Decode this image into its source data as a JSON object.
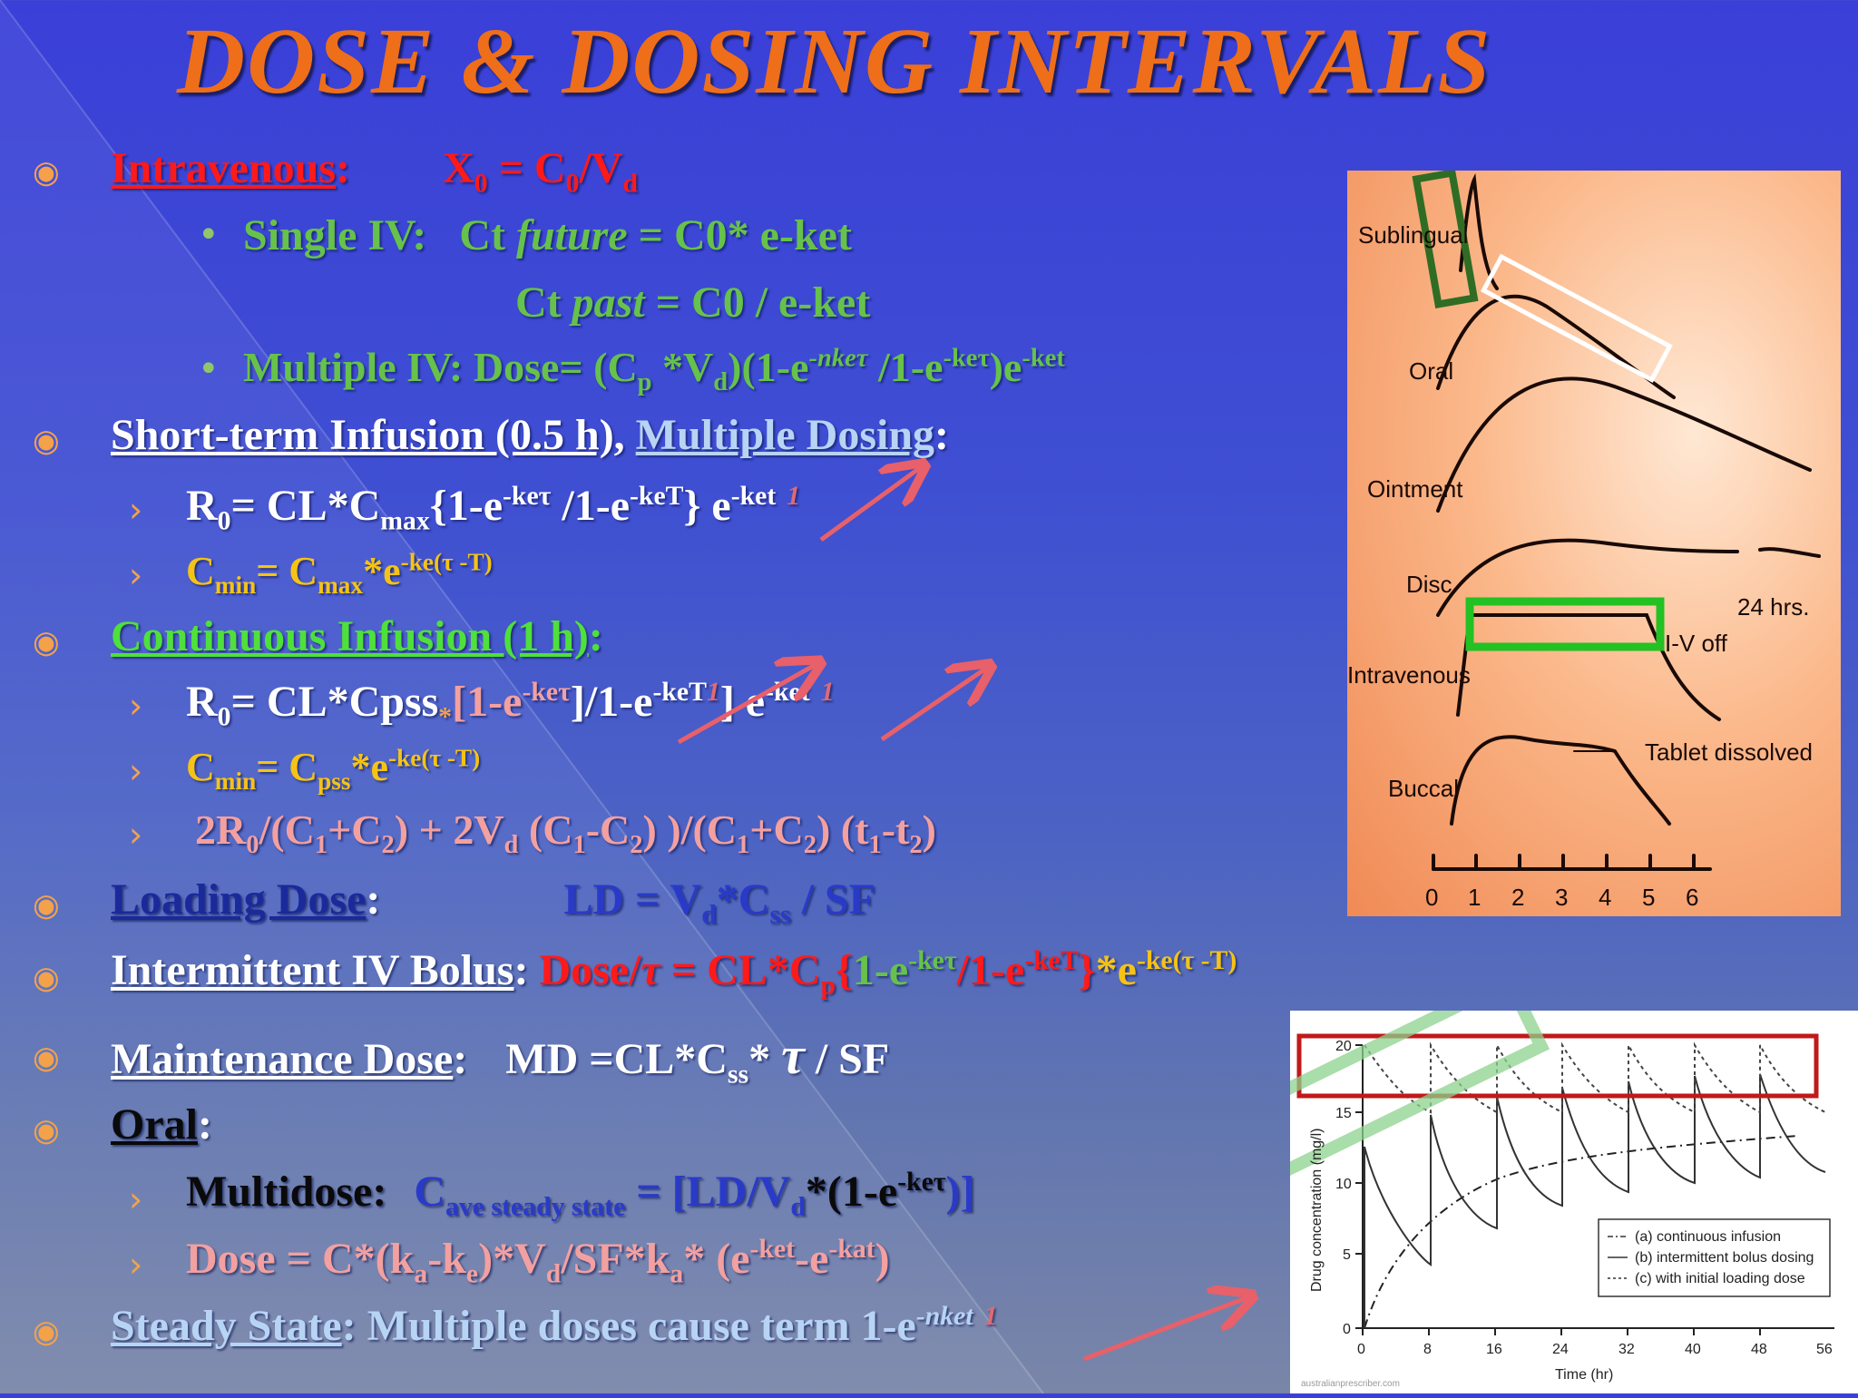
{
  "title": "DOSE & DOSING INTERVALS",
  "l1": {
    "label": "Intravenous",
    "colon": ":",
    "formula_x": "X",
    "formula_xs": "0",
    "formula_eq": " = C",
    "formula_cs": "0",
    "formula_v": "/V",
    "formula_vs": "d"
  },
  "l2": {
    "label": "Single IV:",
    "a": "Ct ",
    "b": "future",
    "c": " =  C0* e-ket"
  },
  "l3": {
    "a": "Ct ",
    "b": "past",
    "c": "   =  C0 / e-ket"
  },
  "l4": {
    "a": "Multiple IV: Dose= (C",
    "p": "p",
    "b": " *V",
    "d": "d",
    "c": ")(1-e",
    "s1": "-nkeτ",
    "e": " /1-e",
    "s2": "-keτ",
    "f": ")e",
    "s3": "-ket"
  },
  "l5": {
    "a": "Short-term Infusion (0.5 h),",
    "b": "Multiple Dosing",
    "c": ":"
  },
  "l6": {
    "a": "R",
    "a_s": "0",
    "b": "= CL*C",
    "b_s": "max",
    "c": "{1-e",
    "c_s": "-keτ",
    "d": " /1-e",
    "d_s": "-keT",
    "e": "} e",
    "e_s": "-ket",
    "f": "1"
  },
  "l7": {
    "a": "C",
    "a_s": "min",
    "b": "= C",
    "b_s": "max",
    "c": "*e",
    "c_s": "-ke(τ -T)"
  },
  "l8": {
    "label": "Continuous Infusion (1 h)",
    "colon": ":"
  },
  "l9": {
    "a": "R",
    "a_s": "0",
    "b": "= CL*Cpss",
    "b_s": "*",
    "c": "[1-e",
    "c_s": "-keτ",
    "d": "]/1-e",
    "d_s": "-keT",
    "d2": "1",
    "e": "] e",
    "e_s": "-ket",
    "f": "1"
  },
  "l10": {
    "a": "C",
    "a_s": "min",
    "b": "= C",
    "b_s": "pss",
    "c": "*e",
    "c_s": "-ke(τ -T)"
  },
  "l11": {
    "a": "2R",
    "a_s": "0",
    "b": "/(C",
    "b_s": "1",
    "c": "+C",
    "c_s": "2",
    "d": ") + 2V",
    "d_s": "d",
    "e": " (C",
    "e_s": "1",
    "f": "-C",
    "f_s": "2",
    "g": ") )/(C",
    "g_s": "1",
    "h": "+C",
    "h_s": "2",
    "i": ") (t",
    "i_s": "1",
    "j": "-t",
    "j_s": "2",
    "k": ")"
  },
  "l12": {
    "label": "Loading Dose",
    "colon": ":",
    "a": "LD = V",
    "a_s": "d",
    "b": "*C",
    "b_s": "ss",
    "c": " / SF"
  },
  "l13": {
    "label": "Intermittent IV Bolus",
    "colon": ":",
    "a": " Dose/",
    "tau": "τ",
    "b": " = CL*C",
    "b_s": "p",
    "c": "{",
    "d": "1-e",
    "d_s": "-keτ",
    "e": "/1-e",
    "e_s": "-keT",
    "f": "}",
    "g": "*e",
    "g_s": "-ke(τ -T)"
  },
  "l14": {
    "label": "Maintenance Dose",
    "colon": ":",
    "a": "MD =CL*C",
    "a_s": "ss",
    "b": "* ",
    "tau": "τ",
    "c": " / SF"
  },
  "l15": {
    "label": "Oral",
    "colon": ":"
  },
  "l16": {
    "a": "Multidose:",
    "b": "C",
    "b_s": "ave steady state",
    "c": " = [LD/V",
    "c_s": "d",
    "d": "*(1-e",
    "d_s": "-keτ",
    "e": ")]"
  },
  "l17": {
    "a": "Dose = C*(k",
    "a_s": "a",
    "b": "-k",
    "b_s": "e",
    "c": ")*V",
    "c_s": "d",
    "d": "/SF*k",
    "d_s": "a",
    "e": "* (e",
    "e_s": "-ket",
    "f": "-e",
    "f_s": "-kat",
    "g": ")"
  },
  "l18": {
    "label": "Steady State",
    "colon": ":",
    "a": " Multiple doses cause term 1-e",
    "a_s": "-nket",
    "b": "1"
  },
  "img1": {
    "labels": [
      "Sublingual",
      "Oral",
      "Ointment",
      "Disc",
      "Intravenous",
      "Buccal"
    ],
    "note_24": "24 hrs.",
    "note_iv": "I-V off",
    "note_tab": "Tablet dissolved",
    "ticks": [
      "0",
      "1",
      "2",
      "3",
      "4",
      "5",
      "6"
    ]
  },
  "img2": {
    "y_ticks": [
      "20",
      "15",
      "10",
      "5",
      "0"
    ],
    "x_ticks": [
      "0",
      "8",
      "16",
      "24",
      "32",
      "40",
      "48",
      "56"
    ],
    "xlabel": "Time (hr)",
    "ylabel": "Drug concentration (mg/l)",
    "legend": [
      "(a) continuous infusion",
      "(b) intermittent bolus dosing",
      "(c) with initial loading dose"
    ],
    "credit": "australianprescriber.com"
  },
  "colors": {
    "title": "#ee6e1a",
    "bullet": "#f3a24a",
    "red": "#ff1a1a",
    "green": "#66c24a",
    "yellow": "#f5c316",
    "pink": "#f3a0a0"
  }
}
